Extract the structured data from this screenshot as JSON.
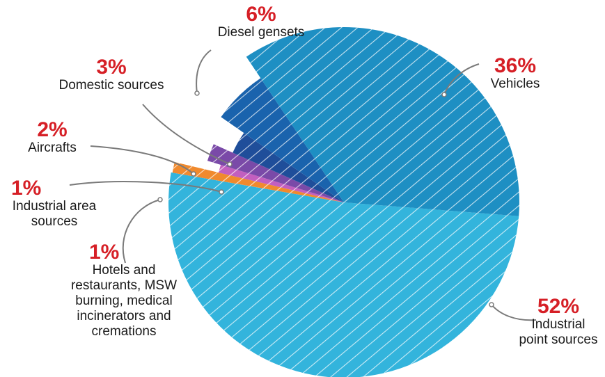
{
  "chart_data": {
    "type": "pie",
    "colors": {
      "label_percent": "#d61f26",
      "label_text": "#1a1a1a",
      "leader_line": "#7a7a7a"
    },
    "slices": [
      {
        "label": "Industrial point sources",
        "value": 52,
        "value_label": "52%",
        "color": "#33b4dc"
      },
      {
        "label": "Hotels and restaurants, MSW burning, medical incinerators and cremations",
        "value": 1,
        "value_label": "1%",
        "color": "#f08a2e"
      },
      {
        "label": "Industrial area sources",
        "value": 1,
        "value_label": "1%",
        "color": "#c25fbf"
      },
      {
        "label": "Aircrafts",
        "value": 2,
        "value_label": "2%",
        "color": "#7a4aa8"
      },
      {
        "label": "Domestic sources",
        "value": 3,
        "value_label": "3%",
        "color": "#1f4e9a"
      },
      {
        "label": "Diesel gensets",
        "value": 6,
        "value_label": "6%",
        "color": "#1a63ad"
      },
      {
        "label": "Vehicles",
        "value": 36,
        "value_label": "36%",
        "color": "#1e8fc3"
      }
    ]
  }
}
